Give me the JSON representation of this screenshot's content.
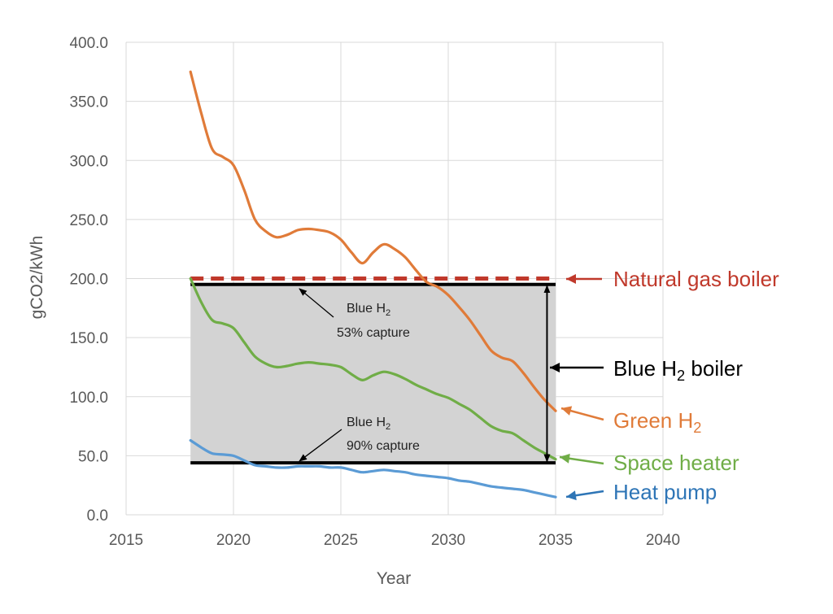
{
  "chart_data": {
    "type": "line",
    "xlabel": "Year",
    "ylabel": "gCO2/kWh",
    "xlim": [
      2015,
      2040
    ],
    "ylim": [
      0,
      400
    ],
    "x_ticks": [
      "2015",
      "2020",
      "2025",
      "2030",
      "2035",
      "2040"
    ],
    "y_ticks": [
      "0.0",
      "50.0",
      "100.0",
      "150.0",
      "200.0",
      "250.0",
      "300.0",
      "350.0",
      "400.0"
    ],
    "grid": "vertical",
    "series": [
      {
        "name": "Green H2",
        "color": "#e07b39",
        "x": [
          2018,
          2018.5,
          2019,
          2019.5,
          2020,
          2020.5,
          2021,
          2021.5,
          2022,
          2022.5,
          2023,
          2023.5,
          2024,
          2024.5,
          2025,
          2025.5,
          2026,
          2026.5,
          2027,
          2027.5,
          2028,
          2028.5,
          2029,
          2029.5,
          2030,
          2030.5,
          2031,
          2031.5,
          2032,
          2032.5,
          2033,
          2033.5,
          2034,
          2034.5,
          2035
        ],
        "y": [
          375,
          340,
          310,
          303,
          296,
          275,
          250,
          240,
          235,
          237,
          241,
          242,
          241,
          239,
          233,
          222,
          213,
          222,
          229,
          225,
          218,
          207,
          197,
          193,
          186,
          176,
          165,
          152,
          139,
          133,
          130,
          120,
          108,
          97,
          88
        ]
      },
      {
        "name": "Space heater",
        "color": "#70ad47",
        "x": [
          2018,
          2018.5,
          2019,
          2019.5,
          2020,
          2020.5,
          2021,
          2021.5,
          2022,
          2022.5,
          2023,
          2023.5,
          2024,
          2024.5,
          2025,
          2025.5,
          2026,
          2026.5,
          2027,
          2027.5,
          2028,
          2028.5,
          2029,
          2029.5,
          2030,
          2030.5,
          2031,
          2031.5,
          2032,
          2032.5,
          2033,
          2033.5,
          2034,
          2034.5,
          2035
        ],
        "y": [
          200,
          180,
          165,
          162,
          158,
          146,
          134,
          128,
          125,
          126,
          128,
          129,
          128,
          127,
          125,
          119,
          114,
          118,
          121,
          119,
          115,
          110,
          106,
          102,
          99,
          94,
          89,
          82,
          75,
          71,
          69,
          63,
          57,
          52,
          47
        ]
      },
      {
        "name": "Heat pump",
        "color": "#5b9bd5",
        "x": [
          2018,
          2018.5,
          2019,
          2019.5,
          2020,
          2020.5,
          2021,
          2021.5,
          2022,
          2022.5,
          2023,
          2023.5,
          2024,
          2024.5,
          2025,
          2025.5,
          2026,
          2026.5,
          2027,
          2027.5,
          2028,
          2028.5,
          2029,
          2029.5,
          2030,
          2030.5,
          2031,
          2031.5,
          2032,
          2032.5,
          2033,
          2033.5,
          2034,
          2034.5,
          2035
        ],
        "y": [
          63,
          57,
          52,
          51,
          50,
          46,
          42,
          41,
          40,
          40,
          41,
          41,
          41,
          40,
          40,
          38,
          36,
          37,
          38,
          37,
          36,
          34,
          33,
          32,
          31,
          29,
          28,
          26,
          24,
          23,
          22,
          21,
          19,
          17,
          15
        ]
      }
    ],
    "reference_lines": [
      {
        "name": "Natural gas boiler",
        "y": 200,
        "x_start": 2018,
        "x_end": 2035,
        "color": "#c0392b",
        "style": "dashed"
      },
      {
        "name": "Blue H2 53% capture",
        "y": 195,
        "x_start": 2018,
        "x_end": 2035,
        "color": "#000000",
        "style": "solid"
      },
      {
        "name": "Blue H2 90% capture",
        "y": 44,
        "x_start": 2018,
        "x_end": 2035,
        "color": "#000000",
        "style": "solid"
      }
    ],
    "shaded_band": {
      "y_low": 44,
      "y_high": 195,
      "x_start": 2018,
      "x_end": 2035,
      "color": "#d3d3d3"
    },
    "annotations": {
      "natural_gas": {
        "text": "Natural gas boiler",
        "color": "#c0392b"
      },
      "blue_boiler": {
        "prefix": "Blue H",
        "sub": "2",
        "suffix": " boiler",
        "color": "#000000"
      },
      "green": {
        "prefix": "Green H",
        "sub": "2",
        "color": "#e07b39"
      },
      "space_heater": {
        "text": "Space heater",
        "color": "#70ad47"
      },
      "heat_pump": {
        "text": "Heat pump",
        "color": "#2e75b6"
      },
      "blue53": {
        "line1_prefix": "Blue H",
        "line1_sub": "2",
        "line2": "53% capture"
      },
      "blue90": {
        "line1_prefix": "Blue H",
        "line1_sub": "2",
        "line2": "90% capture"
      }
    }
  }
}
